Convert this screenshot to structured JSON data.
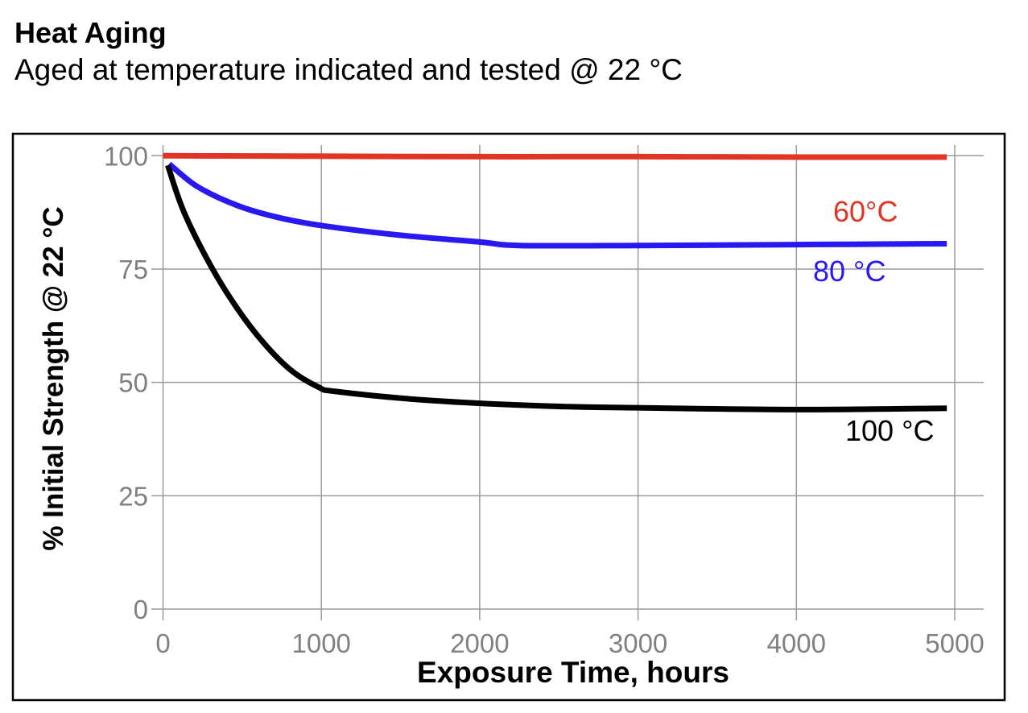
{
  "header": {
    "title": "Heat Aging",
    "subtitle": "Aged at temperature indicated and tested @ 22 °C"
  },
  "chart_data": {
    "type": "line",
    "title": "Heat Aging",
    "subtitle": "Aged at temperature indicated and tested @ 22 °C",
    "xlabel": "Exposure Time, hours",
    "ylabel": "% Initial Strength @ 22 °C",
    "xlim": [
      0,
      5000
    ],
    "ylim": [
      0,
      100
    ],
    "xticks": [
      "0",
      "1000",
      "2000",
      "3000",
      "4000",
      "5000"
    ],
    "yticks": [
      "0",
      "25",
      "50",
      "75",
      "100"
    ],
    "grid": true,
    "series": [
      {
        "name": "60°C",
        "color": "#e03424",
        "x": [
          0,
          1000,
          2000,
          3000,
          4000,
          4950
        ],
        "y": [
          100,
          99.9,
          99.8,
          99.8,
          99.7,
          99.7
        ]
      },
      {
        "name": "80 °C",
        "color": "#2a18f0",
        "x": [
          39,
          217,
          471,
          725,
          1000,
          1488,
          1996,
          2250,
          3000,
          4000,
          4950
        ],
        "y": [
          98.2,
          93.2,
          89.0,
          86.4,
          84.6,
          82.5,
          81.0,
          80.2,
          80.2,
          80.4,
          80.6
        ]
      },
      {
        "name": "100 °C",
        "color": "#000000",
        "x": [
          30,
          132,
          302,
          471,
          641,
          811,
          980,
          1090,
          1656,
          2403,
          3000,
          4000,
          4950
        ],
        "y": [
          97.9,
          87.6,
          75.7,
          66.2,
          58.5,
          52.6,
          49.0,
          48.0,
          46.1,
          44.8,
          44.4,
          44.0,
          44.3
        ]
      }
    ]
  }
}
